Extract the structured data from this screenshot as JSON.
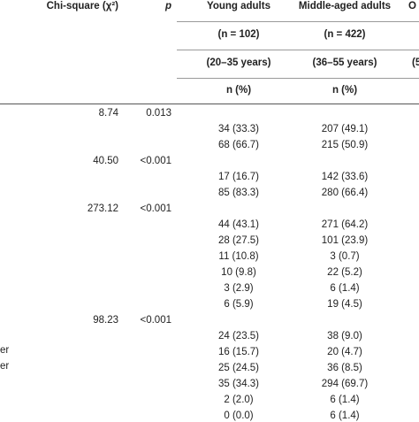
{
  "header": {
    "chi_square": "Chi-square (χ²)",
    "p": "p",
    "young_label": "Young adults",
    "middle_label": "Middle-aged adults",
    "cut_col_label": "O",
    "young_n": "(n = 102)",
    "middle_n": "(n = 422)",
    "young_range": "(20–35 years)",
    "middle_range": "(36–55 years)",
    "cut_col_range": "(5",
    "young_unit": "n (%)",
    "middle_unit": "n (%)"
  },
  "left_fragments": [
    "er",
    "er"
  ],
  "rows": [
    {
      "chi": "8.74",
      "p": "0.013",
      "young": "",
      "middle": ""
    },
    {
      "chi": "",
      "p": "",
      "young": "34 (33.3)",
      "middle": "207 (49.1)"
    },
    {
      "chi": "",
      "p": "",
      "young": "68 (66.7)",
      "middle": "215 (50.9)"
    },
    {
      "chi": "40.50",
      "p": "<0.001",
      "young": "",
      "middle": ""
    },
    {
      "chi": "",
      "p": "",
      "young": "17 (16.7)",
      "middle": "142 (33.6)"
    },
    {
      "chi": "",
      "p": "",
      "young": "85 (83.3)",
      "middle": "280 (66.4)"
    },
    {
      "chi": "273.12",
      "p": "<0.001",
      "young": "",
      "middle": ""
    },
    {
      "chi": "",
      "p": "",
      "young": "44 (43.1)",
      "middle": "271 (64.2)"
    },
    {
      "chi": "",
      "p": "",
      "young": "28 (27.5)",
      "middle": "101 (23.9)"
    },
    {
      "chi": "",
      "p": "",
      "young": "11 (10.8)",
      "middle": "3 (0.7)"
    },
    {
      "chi": "",
      "p": "",
      "young": "10 (9.8)",
      "middle": "22 (5.2)"
    },
    {
      "chi": "",
      "p": "",
      "young": "3 (2.9)",
      "middle": "6 (1.4)"
    },
    {
      "chi": "",
      "p": "",
      "young": "6 (5.9)",
      "middle": "19 (4.5)"
    },
    {
      "chi": "98.23",
      "p": "<0.001",
      "young": "",
      "middle": ""
    },
    {
      "chi": "",
      "p": "",
      "young": "24 (23.5)",
      "middle": "38 (9.0)"
    },
    {
      "chi": "",
      "p": "",
      "young": "16 (15.7)",
      "middle": "20 (4.7)"
    },
    {
      "chi": "",
      "p": "",
      "young": "25 (24.5)",
      "middle": "36 (8.5)"
    },
    {
      "chi": "",
      "p": "",
      "young": "35 (34.3)",
      "middle": "294 (69.7)"
    },
    {
      "chi": "",
      "p": "",
      "young": "2 (2.0)",
      "middle": "6 (1.4)"
    },
    {
      "chi": "",
      "p": "",
      "young": "0 (0.0)",
      "middle": "6 (1.4)"
    }
  ]
}
